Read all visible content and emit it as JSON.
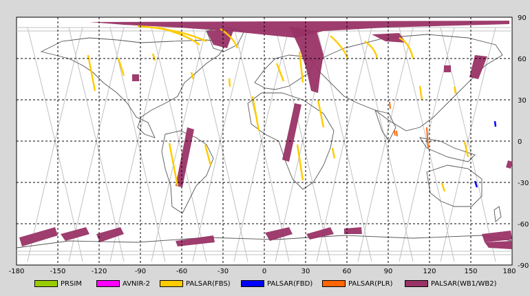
{
  "map": {
    "lon_ticks": [
      "-180",
      "-150",
      "-120",
      "-90",
      "-60",
      "-30",
      "0",
      "30",
      "60",
      "90",
      "120",
      "150",
      "180"
    ],
    "lat_ticks": [
      "90",
      "60",
      "30",
      "0",
      "-30",
      "-60",
      "-90"
    ]
  },
  "legend": [
    {
      "label": "PRSIM",
      "color": "#99cc00"
    },
    {
      "label": "AVNIR-2",
      "color": "#ff00ff"
    },
    {
      "label": "PALSAR(FBS)",
      "color": "#ffcc00"
    },
    {
      "label": "PALSAR(FBD)",
      "color": "#0000ff"
    },
    {
      "label": "PALSAR(PLR)",
      "color": "#ff6600"
    },
    {
      "label": "PALSAR(WB1/WB2)",
      "color": "#993366"
    }
  ],
  "colors": {
    "land_outline": "#555555",
    "orbit_track": "#c0c0c0",
    "grid": "#000000",
    "map_background": "#ffffff"
  }
}
